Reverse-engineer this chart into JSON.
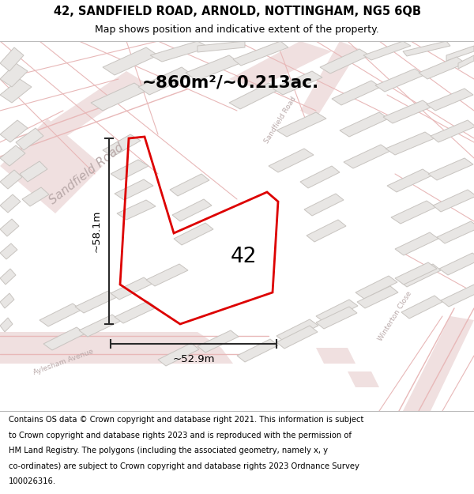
{
  "title_line1": "42, SANDFIELD ROAD, ARNOLD, NOTTINGHAM, NG5 6QB",
  "title_line2": "Map shows position and indicative extent of the property.",
  "area_text": "~860m²/~0.213ac.",
  "dim_vertical": "~58.1m",
  "dim_horizontal": "~52.9m",
  "label_42": "42",
  "footer_lines": [
    "Contains OS data © Crown copyright and database right 2021. This information is subject",
    "to Crown copyright and database rights 2023 and is reproduced with the permission of",
    "HM Land Registry. The polygons (including the associated geometry, namely x, y",
    "co-ordinates) are subject to Crown copyright and database rights 2023 Ordnance Survey",
    "100026316."
  ],
  "map_bg": "#f5f3f2",
  "building_color": "#e8e6e4",
  "building_edge": "#c8c4c0",
  "road_line_color": "#e8b8b8",
  "road_fill_color": "#f0e0e0",
  "sandfield_label_color": "#b8a8a8",
  "plot_edge_color": "#dd0000",
  "dim_line_color": "#2a2a2a",
  "header_bg": "#ffffff",
  "footer_bg": "#ffffff",
  "text_color": "#000000"
}
